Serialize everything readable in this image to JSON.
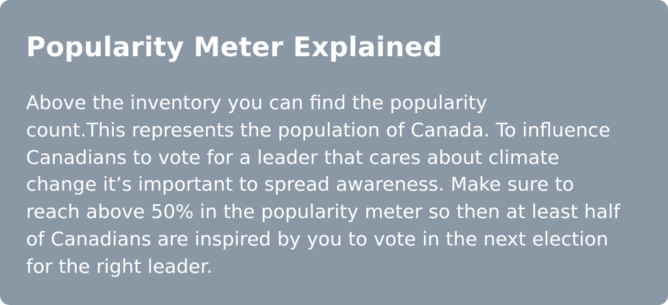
{
  "dialog": {
    "title": "Popularity Meter Explained",
    "body_lines": [
      "Above the inventory you can find the popularity",
      "count.This represents the population of Canada. To influence",
      "Canadians to vote for a leader that cares about climate",
      "change it’s important to spread awareness. Make sure to",
      "reach above 50% in the popularity meter so then at least half",
      "of Canadians are inspired by you to vote in the next election",
      "for the right leader."
    ]
  },
  "colors": {
    "panel_background": "#8a97a5",
    "text": "#ffffff"
  }
}
